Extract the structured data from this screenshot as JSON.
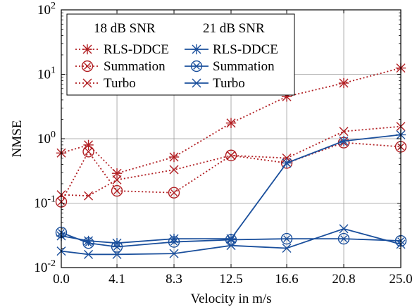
{
  "chart_data": {
    "type": "line",
    "xlabel": "Velocity in m/s",
    "ylabel": "NMSE",
    "y_scale": "log",
    "ylim": [
      0.01,
      100
    ],
    "x_ticks": [
      0.0,
      4.1,
      8.3,
      12.5,
      16.6,
      20.8,
      25.0
    ],
    "x_tick_labels": [
      "0.0",
      "4.1",
      "8.3",
      "12.5",
      "16.6",
      "20.8",
      "25.0"
    ],
    "y_ticks": [
      {
        "value": 0.01,
        "base": "10",
        "exp": "-2"
      },
      {
        "value": 0.1,
        "base": "10",
        "exp": "-1"
      },
      {
        "value": 1,
        "base": "10",
        "exp": "0"
      },
      {
        "value": 10,
        "base": "10",
        "exp": "1"
      },
      {
        "value": 100,
        "base": "10",
        "exp": "2"
      }
    ],
    "grid": true,
    "legend": {
      "placement": "top-left",
      "group_titles": [
        "18 dB SNR",
        "21 dB SNR"
      ]
    },
    "colors": {
      "snr18": "#b11e22",
      "snr21": "#1a4f9c"
    },
    "series": [
      {
        "name": "RLS-DDCE",
        "group": "18 dB SNR",
        "marker": "asterisk",
        "dashed": true,
        "x": [
          0,
          2,
          4.1,
          8.3,
          12.5,
          16.6,
          20.8,
          25.0
        ],
        "y": [
          0.6,
          0.8,
          0.29,
          0.52,
          1.75,
          4.5,
          7.3,
          12.5
        ]
      },
      {
        "name": "Summation",
        "group": "18 dB SNR",
        "marker": "circle-x",
        "dashed": true,
        "x": [
          0,
          2,
          4.1,
          8.3,
          12.5,
          16.6,
          20.8,
          25.0
        ],
        "y": [
          0.105,
          0.63,
          0.155,
          0.145,
          0.55,
          0.42,
          0.87,
          0.75
        ]
      },
      {
        "name": "Turbo",
        "group": "18 dB SNR",
        "marker": "x",
        "dashed": true,
        "x": [
          0,
          2,
          4.1,
          8.3,
          12.5,
          16.6,
          20.8,
          25.0
        ],
        "y": [
          0.135,
          0.13,
          0.23,
          0.33,
          0.55,
          0.5,
          1.3,
          1.55
        ]
      },
      {
        "name": "RLS-DDCE",
        "group": "21 dB SNR",
        "marker": "asterisk",
        "dashed": false,
        "x": [
          0,
          2,
          4.1,
          8.3,
          12.5,
          16.6,
          20.8,
          25.0
        ],
        "y": [
          0.031,
          0.026,
          0.024,
          0.028,
          0.028,
          0.42,
          0.92,
          1.15
        ]
      },
      {
        "name": "Summation",
        "group": "21 dB SNR",
        "marker": "circle-x",
        "dashed": false,
        "x": [
          0,
          2,
          4.1,
          8.3,
          12.5,
          16.6,
          20.8,
          25.0
        ],
        "y": [
          0.035,
          0.024,
          0.021,
          0.025,
          0.027,
          0.028,
          0.028,
          0.026
        ]
      },
      {
        "name": "Turbo",
        "group": "21 dB SNR",
        "marker": "x",
        "dashed": false,
        "x": [
          0,
          2,
          4.1,
          8.3,
          12.5,
          16.6,
          20.8,
          25.0
        ],
        "y": [
          0.018,
          0.016,
          0.016,
          0.0165,
          0.022,
          0.02,
          0.04,
          0.023
        ]
      }
    ]
  }
}
